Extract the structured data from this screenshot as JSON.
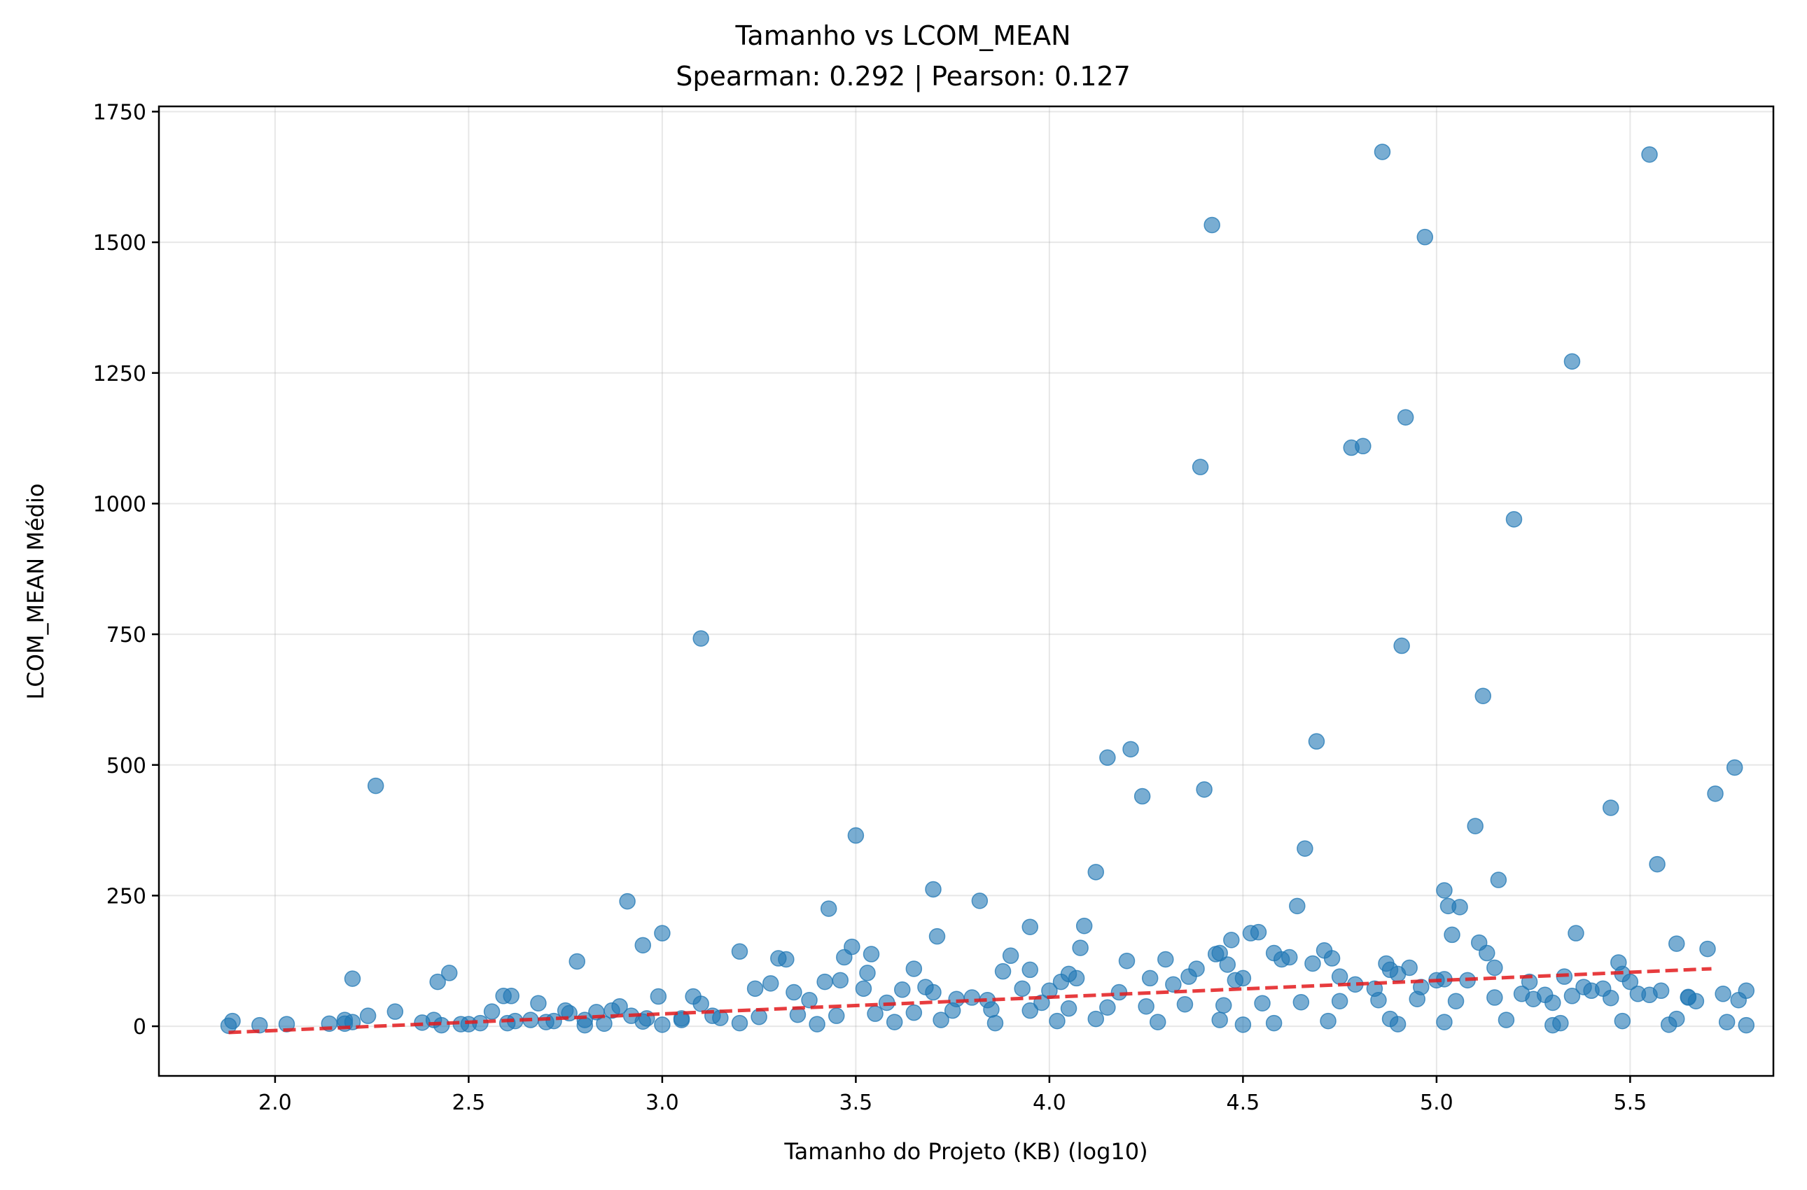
{
  "chart_data": {
    "type": "scatter",
    "title": "Tamanho vs LCOM_MEAN",
    "subtitle": "Spearman: 0.292 | Pearson: 0.127",
    "xlabel": "Tamanho do Projeto (KB) (log10)",
    "ylabel": "LCOM_MEAN Médio",
    "xlim": [
      1.7,
      5.87
    ],
    "ylim": [
      -95,
      1760
    ],
    "xticks": [
      2.0,
      2.5,
      3.0,
      3.5,
      4.0,
      4.5,
      5.0,
      5.5
    ],
    "xtick_labels": [
      "2.0",
      "2.5",
      "3.0",
      "3.5",
      "4.0",
      "4.5",
      "5.0",
      "5.5"
    ],
    "yticks": [
      0,
      250,
      500,
      750,
      1000,
      1250,
      1500,
      1750
    ],
    "ytick_labels": [
      "0",
      "250",
      "500",
      "750",
      "1000",
      "1250",
      "1500",
      "1750"
    ],
    "grid": true,
    "colors": {
      "points": "#1f77b4",
      "trend": "#e31a1c"
    },
    "trend_line": {
      "style": "dashed",
      "x": [
        1.88,
        5.71
      ],
      "y": [
        -12,
        110
      ]
    },
    "points": [
      [
        2.26,
        460
      ],
      [
        3.1,
        742
      ],
      [
        2.91,
        239
      ],
      [
        2.95,
        155
      ],
      [
        3.0,
        178
      ],
      [
        2.78,
        124
      ],
      [
        2.2,
        91
      ],
      [
        2.45,
        102
      ],
      [
        2.42,
        85
      ],
      [
        2.31,
        28
      ],
      [
        2.24,
        20
      ],
      [
        1.89,
        10
      ],
      [
        1.88,
        1
      ],
      [
        1.96,
        2
      ],
      [
        2.03,
        4
      ],
      [
        2.14,
        5
      ],
      [
        2.18,
        12
      ],
      [
        2.18,
        5
      ],
      [
        2.2,
        8
      ],
      [
        2.38,
        7
      ],
      [
        2.41,
        12
      ],
      [
        2.43,
        2
      ],
      [
        2.48,
        4
      ],
      [
        2.53,
        6
      ],
      [
        2.56,
        28
      ],
      [
        2.59,
        58
      ],
      [
        2.61,
        58
      ],
      [
        2.62,
        10
      ],
      [
        2.66,
        12
      ],
      [
        2.68,
        44
      ],
      [
        2.72,
        10
      ],
      [
        2.75,
        30
      ],
      [
        2.76,
        25
      ],
      [
        2.8,
        12
      ],
      [
        2.83,
        27
      ],
      [
        2.87,
        30
      ],
      [
        2.89,
        38
      ],
      [
        2.92,
        20
      ],
      [
        2.96,
        15
      ],
      [
        2.99,
        57
      ],
      [
        3.05,
        15
      ],
      [
        3.08,
        57
      ],
      [
        3.1,
        43
      ],
      [
        3.13,
        20
      ],
      [
        3.2,
        143
      ],
      [
        3.24,
        72
      ],
      [
        3.28,
        82
      ],
      [
        3.3,
        130
      ],
      [
        3.32,
        128
      ],
      [
        3.34,
        65
      ],
      [
        3.38,
        50
      ],
      [
        3.42,
        85
      ],
      [
        3.43,
        225
      ],
      [
        3.46,
        88
      ],
      [
        3.47,
        132
      ],
      [
        3.49,
        152
      ],
      [
        3.5,
        365
      ],
      [
        3.52,
        72
      ],
      [
        3.53,
        102
      ],
      [
        3.54,
        138
      ],
      [
        3.58,
        45
      ],
      [
        3.62,
        70
      ],
      [
        3.65,
        110
      ],
      [
        3.68,
        75
      ],
      [
        3.7,
        65
      ],
      [
        3.7,
        262
      ],
      [
        3.71,
        172
      ],
      [
        3.76,
        52
      ],
      [
        3.8,
        55
      ],
      [
        3.82,
        240
      ],
      [
        3.84,
        50
      ],
      [
        3.88,
        105
      ],
      [
        3.9,
        135
      ],
      [
        3.93,
        72
      ],
      [
        3.95,
        108
      ],
      [
        3.95,
        190
      ],
      [
        3.98,
        45
      ],
      [
        4.0,
        68
      ],
      [
        4.03,
        85
      ],
      [
        4.05,
        100
      ],
      [
        4.07,
        92
      ],
      [
        4.08,
        150
      ],
      [
        4.09,
        192
      ],
      [
        4.12,
        295
      ],
      [
        4.15,
        514
      ],
      [
        4.18,
        65
      ],
      [
        4.2,
        125
      ],
      [
        4.21,
        530
      ],
      [
        4.24,
        440
      ],
      [
        4.26,
        92
      ],
      [
        4.3,
        128
      ],
      [
        4.32,
        80
      ],
      [
        4.36,
        95
      ],
      [
        4.38,
        110
      ],
      [
        4.39,
        1070
      ],
      [
        4.4,
        453
      ],
      [
        4.42,
        1533
      ],
      [
        4.43,
        138
      ],
      [
        4.44,
        140
      ],
      [
        4.46,
        118
      ],
      [
        4.47,
        165
      ],
      [
        4.48,
        88
      ],
      [
        4.5,
        92
      ],
      [
        4.52,
        178
      ],
      [
        4.54,
        180
      ],
      [
        4.58,
        140
      ],
      [
        4.6,
        128
      ],
      [
        4.62,
        132
      ],
      [
        4.64,
        230
      ],
      [
        4.66,
        340
      ],
      [
        4.68,
        120
      ],
      [
        4.69,
        545
      ],
      [
        4.71,
        145
      ],
      [
        4.73,
        130
      ],
      [
        4.75,
        95
      ],
      [
        4.78,
        1107
      ],
      [
        4.79,
        80
      ],
      [
        4.81,
        1110
      ],
      [
        4.84,
        72
      ],
      [
        4.86,
        1673
      ],
      [
        4.87,
        120
      ],
      [
        4.88,
        108
      ],
      [
        4.9,
        100
      ],
      [
        4.91,
        728
      ],
      [
        4.92,
        1165
      ],
      [
        4.93,
        112
      ],
      [
        4.96,
        75
      ],
      [
        4.97,
        1510
      ],
      [
        5.0,
        88
      ],
      [
        5.02,
        90
      ],
      [
        5.02,
        260
      ],
      [
        5.03,
        230
      ],
      [
        5.04,
        175
      ],
      [
        5.06,
        228
      ],
      [
        5.08,
        88
      ],
      [
        5.1,
        383
      ],
      [
        5.11,
        160
      ],
      [
        5.12,
        632
      ],
      [
        5.13,
        140
      ],
      [
        5.15,
        112
      ],
      [
        5.16,
        280
      ],
      [
        5.2,
        970
      ],
      [
        5.22,
        62
      ],
      [
        5.24,
        85
      ],
      [
        5.28,
        60
      ],
      [
        5.3,
        45
      ],
      [
        5.33,
        95
      ],
      [
        5.35,
        1272
      ],
      [
        5.36,
        178
      ],
      [
        5.38,
        75
      ],
      [
        5.4,
        68
      ],
      [
        5.43,
        72
      ],
      [
        5.45,
        418
      ],
      [
        5.47,
        122
      ],
      [
        5.48,
        100
      ],
      [
        5.5,
        85
      ],
      [
        5.52,
        62
      ],
      [
        5.55,
        1668
      ],
      [
        5.57,
        310
      ],
      [
        5.58,
        68
      ],
      [
        5.62,
        158
      ],
      [
        5.65,
        55
      ],
      [
        5.67,
        48
      ],
      [
        5.7,
        148
      ],
      [
        5.72,
        445
      ],
      [
        5.74,
        62
      ],
      [
        5.77,
        495
      ],
      [
        5.78,
        50
      ],
      [
        5.8,
        68
      ],
      [
        5.8,
        2
      ],
      [
        2.5,
        4
      ],
      [
        2.6,
        6
      ],
      [
        2.7,
        8
      ],
      [
        2.85,
        5
      ],
      [
        2.95,
        9
      ],
      [
        3.05,
        12
      ],
      [
        3.15,
        16
      ],
      [
        3.25,
        18
      ],
      [
        3.35,
        22
      ],
      [
        3.45,
        20
      ],
      [
        3.55,
        24
      ],
      [
        3.65,
        26
      ],
      [
        3.75,
        30
      ],
      [
        3.85,
        32
      ],
      [
        3.95,
        30
      ],
      [
        4.05,
        34
      ],
      [
        4.15,
        36
      ],
      [
        4.25,
        38
      ],
      [
        4.35,
        42
      ],
      [
        4.45,
        40
      ],
      [
        4.55,
        44
      ],
      [
        4.65,
        46
      ],
      [
        4.75,
        48
      ],
      [
        4.85,
        50
      ],
      [
        4.95,
        52
      ],
      [
        5.05,
        48
      ],
      [
        5.15,
        55
      ],
      [
        5.25,
        52
      ],
      [
        5.35,
        58
      ],
      [
        5.45,
        54
      ],
      [
        5.55,
        60
      ],
      [
        5.65,
        56
      ],
      [
        3.6,
        8
      ],
      [
        3.72,
        12
      ],
      [
        3.86,
        6
      ],
      [
        4.02,
        10
      ],
      [
        4.12,
        14
      ],
      [
        4.28,
        8
      ],
      [
        4.44,
        12
      ],
      [
        4.58,
        6
      ],
      [
        4.72,
        10
      ],
      [
        4.88,
        14
      ],
      [
        5.02,
        8
      ],
      [
        5.18,
        12
      ],
      [
        5.32,
        6
      ],
      [
        5.48,
        10
      ],
      [
        5.62,
        14
      ],
      [
        5.75,
        8
      ],
      [
        3.4,
        4
      ],
      [
        3.2,
        6
      ],
      [
        3.0,
        3
      ],
      [
        2.8,
        2
      ],
      [
        4.5,
        3
      ],
      [
        4.9,
        4
      ],
      [
        5.3,
        2
      ],
      [
        5.6,
        3
      ]
    ]
  }
}
